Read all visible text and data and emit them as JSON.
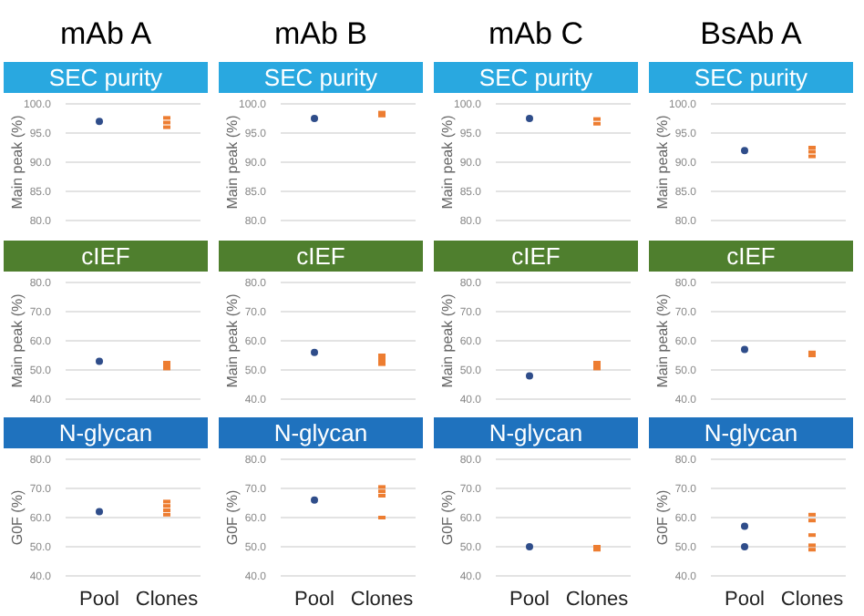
{
  "chart_data": [
    {
      "type": "scatter",
      "title": "mAb A",
      "subtitle": "SEC purity",
      "ylabel": "Main peak (%)",
      "categories": [
        "Pool",
        "Clones"
      ],
      "ylim": [
        80,
        100
      ],
      "yticks": [
        {
          "value": 80,
          "label": "80.0"
        },
        {
          "value": 85,
          "label": "85.0"
        },
        {
          "value": 90,
          "label": "90.0"
        },
        {
          "value": 95,
          "label": "95.0"
        },
        {
          "value": 100,
          "label": "100.0"
        }
      ],
      "grid": "y",
      "tick_labels": "y",
      "series": [
        {
          "color": "#2f4d8a",
          "marker": "circle",
          "x": [
            "Pool"
          ],
          "values": [
            97.0
          ]
        },
        {
          "color": "#ed7d31",
          "marker": "square",
          "x": [
            "Clones",
            "Clones",
            "Clones"
          ],
          "values": [
            96.0,
            96.8,
            97.6
          ]
        }
      ]
    },
    {
      "type": "scatter",
      "title": "mAb B",
      "subtitle": "SEC purity",
      "ylabel": "Main peak (%)",
      "categories": [
        "Pool",
        "Clones"
      ],
      "ylim": [
        80,
        100
      ],
      "yticks": [
        {
          "value": 80,
          "label": "80.0"
        },
        {
          "value": 85,
          "label": "85.0"
        },
        {
          "value": 90,
          "label": "90.0"
        },
        {
          "value": 95,
          "label": "95.0"
        },
        {
          "value": 100,
          "label": "100.0"
        }
      ],
      "grid": "y",
      "tick_labels": "y",
      "series": [
        {
          "color": "#2f4d8a",
          "marker": "circle",
          "x": [
            "Pool"
          ],
          "values": [
            97.5
          ]
        },
        {
          "color": "#ed7d31",
          "marker": "square",
          "x": [
            "Clones",
            "Clones"
          ],
          "values": [
            98.0,
            98.5
          ]
        }
      ]
    },
    {
      "type": "scatter",
      "title": "mAb C",
      "subtitle": "SEC purity",
      "ylabel": "Main peak (%)",
      "categories": [
        "Pool",
        "Clones"
      ],
      "ylim": [
        80,
        100
      ],
      "yticks": [
        {
          "value": 80,
          "label": "80.0"
        },
        {
          "value": 85,
          "label": "85.0"
        },
        {
          "value": 90,
          "label": "90.0"
        },
        {
          "value": 95,
          "label": "95.0"
        },
        {
          "value": 100,
          "label": "100.0"
        }
      ],
      "grid": "y",
      "tick_labels": "y",
      "series": [
        {
          "color": "#2f4d8a",
          "marker": "circle",
          "x": [
            "Pool"
          ],
          "values": [
            97.5
          ]
        },
        {
          "color": "#ed7d31",
          "marker": "square",
          "x": [
            "Clones",
            "Clones"
          ],
          "values": [
            96.6,
            97.4
          ]
        }
      ]
    },
    {
      "type": "scatter",
      "title": "BsAb A",
      "subtitle": "SEC purity",
      "ylabel": "Main peak (%)",
      "categories": [
        "Pool",
        "Clones"
      ],
      "ylim": [
        80,
        100
      ],
      "yticks": [
        {
          "value": 80,
          "label": "80.0"
        },
        {
          "value": 85,
          "label": "85.0"
        },
        {
          "value": 90,
          "label": "90.0"
        },
        {
          "value": 95,
          "label": "95.0"
        },
        {
          "value": 100,
          "label": "100.0"
        }
      ],
      "grid": "y",
      "tick_labels": "y",
      "series": [
        {
          "color": "#2f4d8a",
          "marker": "circle",
          "x": [
            "Pool"
          ],
          "values": [
            92.0
          ]
        },
        {
          "color": "#ed7d31",
          "marker": "square",
          "x": [
            "Clones",
            "Clones",
            "Clones"
          ],
          "values": [
            91.0,
            91.8,
            92.5
          ]
        }
      ]
    },
    {
      "type": "scatter",
      "subtitle": "cIEF",
      "ylabel": "Main peak (%)",
      "categories": [
        "Pool",
        "Clones"
      ],
      "ylim": [
        40,
        80
      ],
      "yticks": [
        {
          "value": 40,
          "label": "40.0"
        },
        {
          "value": 50,
          "label": "50.0"
        },
        {
          "value": 60,
          "label": "60.0"
        },
        {
          "value": 70,
          "label": "70.0"
        },
        {
          "value": 80,
          "label": "80.0"
        }
      ],
      "grid": "y",
      "tick_labels": "y",
      "series": [
        {
          "color": "#2f4d8a",
          "marker": "circle",
          "x": [
            "Pool"
          ],
          "values": [
            53
          ]
        },
        {
          "color": "#ed7d31",
          "marker": "square",
          "x": [
            "Clones",
            "Clones",
            "Clones"
          ],
          "values": [
            50.5,
            51.5,
            52.5
          ]
        }
      ]
    },
    {
      "type": "scatter",
      "subtitle": "cIEF",
      "ylabel": "Main peak (%)",
      "categories": [
        "Pool",
        "Clones"
      ],
      "ylim": [
        40,
        80
      ],
      "yticks": [
        {
          "value": 40,
          "label": "40.0"
        },
        {
          "value": 50,
          "label": "50.0"
        },
        {
          "value": 60,
          "label": "60.0"
        },
        {
          "value": 70,
          "label": "70.0"
        },
        {
          "value": 80,
          "label": "80.0"
        }
      ],
      "grid": "y",
      "tick_labels": "y",
      "series": [
        {
          "color": "#2f4d8a",
          "marker": "circle",
          "x": [
            "Pool"
          ],
          "values": [
            56
          ]
        },
        {
          "color": "#ed7d31",
          "marker": "square",
          "x": [
            "Clones",
            "Clones",
            "Clones",
            "Clones"
          ],
          "values": [
            52,
            53,
            54,
            55
          ]
        }
      ]
    },
    {
      "type": "scatter",
      "subtitle": "cIEF",
      "ylabel": "Main peak (%)",
      "categories": [
        "Pool",
        "Clones"
      ],
      "ylim": [
        40,
        80
      ],
      "yticks": [
        {
          "value": 40,
          "label": "40.0"
        },
        {
          "value": 50,
          "label": "50.0"
        },
        {
          "value": 60,
          "label": "60.0"
        },
        {
          "value": 70,
          "label": "70.0"
        },
        {
          "value": 80,
          "label": "80.0"
        }
      ],
      "grid": "y",
      "tick_labels": "y",
      "series": [
        {
          "color": "#2f4d8a",
          "marker": "circle",
          "x": [
            "Pool"
          ],
          "values": [
            48
          ]
        },
        {
          "color": "#ed7d31",
          "marker": "square",
          "x": [
            "Clones",
            "Clones",
            "Clones"
          ],
          "values": [
            50.5,
            51.5,
            52.5
          ]
        }
      ]
    },
    {
      "type": "scatter",
      "subtitle": "cIEF",
      "ylabel": "Main peak (%)",
      "categories": [
        "Pool",
        "Clones"
      ],
      "ylim": [
        40,
        80
      ],
      "yticks": [
        {
          "value": 40,
          "label": "40.0"
        },
        {
          "value": 50,
          "label": "50.0"
        },
        {
          "value": 60,
          "label": "60.0"
        },
        {
          "value": 70,
          "label": "70.0"
        },
        {
          "value": 80,
          "label": "80.0"
        }
      ],
      "grid": "y",
      "tick_labels": "y",
      "series": [
        {
          "color": "#2f4d8a",
          "marker": "circle",
          "x": [
            "Pool"
          ],
          "values": [
            57
          ]
        },
        {
          "color": "#ed7d31",
          "marker": "square",
          "x": [
            "Clones",
            "Clones"
          ],
          "values": [
            55,
            56
          ]
        }
      ]
    },
    {
      "type": "scatter",
      "subtitle": "N-glycan",
      "ylabel": "G0F (%)",
      "categories": [
        "Pool",
        "Clones"
      ],
      "ylim": [
        40,
        80
      ],
      "yticks": [
        {
          "value": 40,
          "label": "40.0"
        },
        {
          "value": 50,
          "label": "50.0"
        },
        {
          "value": 60,
          "label": "60.0"
        },
        {
          "value": 70,
          "label": "70.0"
        },
        {
          "value": 80,
          "label": "80.0"
        }
      ],
      "grid": "y",
      "series": [
        {
          "color": "#2f4d8a",
          "marker": "circle",
          "x": [
            "Pool"
          ],
          "values": [
            62
          ]
        },
        {
          "color": "#ed7d31",
          "marker": "square",
          "x": [
            "Clones",
            "Clones",
            "Clones",
            "Clones"
          ],
          "values": [
            61,
            62.5,
            64,
            65.5
          ]
        }
      ]
    },
    {
      "type": "scatter",
      "subtitle": "N-glycan",
      "ylabel": "G0F (%)",
      "categories": [
        "Pool",
        "Clones"
      ],
      "ylim": [
        40,
        80
      ],
      "yticks": [
        {
          "value": 40,
          "label": "40.0"
        },
        {
          "value": 50,
          "label": "50.0"
        },
        {
          "value": 60,
          "label": "60.0"
        },
        {
          "value": 70,
          "label": "70.0"
        },
        {
          "value": 80,
          "label": "80.0"
        }
      ],
      "grid": "y",
      "series": [
        {
          "color": "#2f4d8a",
          "marker": "circle",
          "x": [
            "Pool"
          ],
          "values": [
            66
          ]
        },
        {
          "color": "#ed7d31",
          "marker": "square",
          "x": [
            "Clones",
            "Clones",
            "Clones",
            "Clones"
          ],
          "values": [
            60,
            67.5,
            69,
            70.5
          ]
        }
      ]
    },
    {
      "type": "scatter",
      "subtitle": "N-glycan",
      "ylabel": "G0F (%)",
      "categories": [
        "Pool",
        "Clones"
      ],
      "ylim": [
        40,
        80
      ],
      "yticks": [
        {
          "value": 40,
          "label": "40.0"
        },
        {
          "value": 50,
          "label": "50.0"
        },
        {
          "value": 60,
          "label": "60.0"
        },
        {
          "value": 70,
          "label": "70.0"
        },
        {
          "value": 80,
          "label": "80.0"
        }
      ],
      "grid": "y",
      "series": [
        {
          "color": "#2f4d8a",
          "marker": "circle",
          "x": [
            "Pool"
          ],
          "values": [
            50
          ]
        },
        {
          "color": "#ed7d31",
          "marker": "square",
          "x": [
            "Clones",
            "Clones"
          ],
          "values": [
            49,
            50
          ]
        }
      ]
    },
    {
      "type": "scatter",
      "subtitle": "N-glycan",
      "ylabel": "G0F (%)",
      "categories": [
        "Pool",
        "Clones"
      ],
      "ylim": [
        40,
        80
      ],
      "yticks": [
        {
          "value": 40,
          "label": "40.0"
        },
        {
          "value": 50,
          "label": "50.0"
        },
        {
          "value": 60,
          "label": "60.0"
        },
        {
          "value": 70,
          "label": "70.0"
        },
        {
          "value": 80,
          "label": "80.0"
        }
      ],
      "grid": "y",
      "series": [
        {
          "color": "#2f4d8a",
          "marker": "circle",
          "x": [
            "Pool",
            "Pool"
          ],
          "values": [
            50,
            57
          ]
        },
        {
          "color": "#ed7d31",
          "marker": "square",
          "x": [
            "Clones",
            "Clones",
            "Clones",
            "Clones",
            "Clones"
          ],
          "values": [
            49.0,
            50.5,
            54,
            59,
            61
          ]
        }
      ]
    }
  ]
}
